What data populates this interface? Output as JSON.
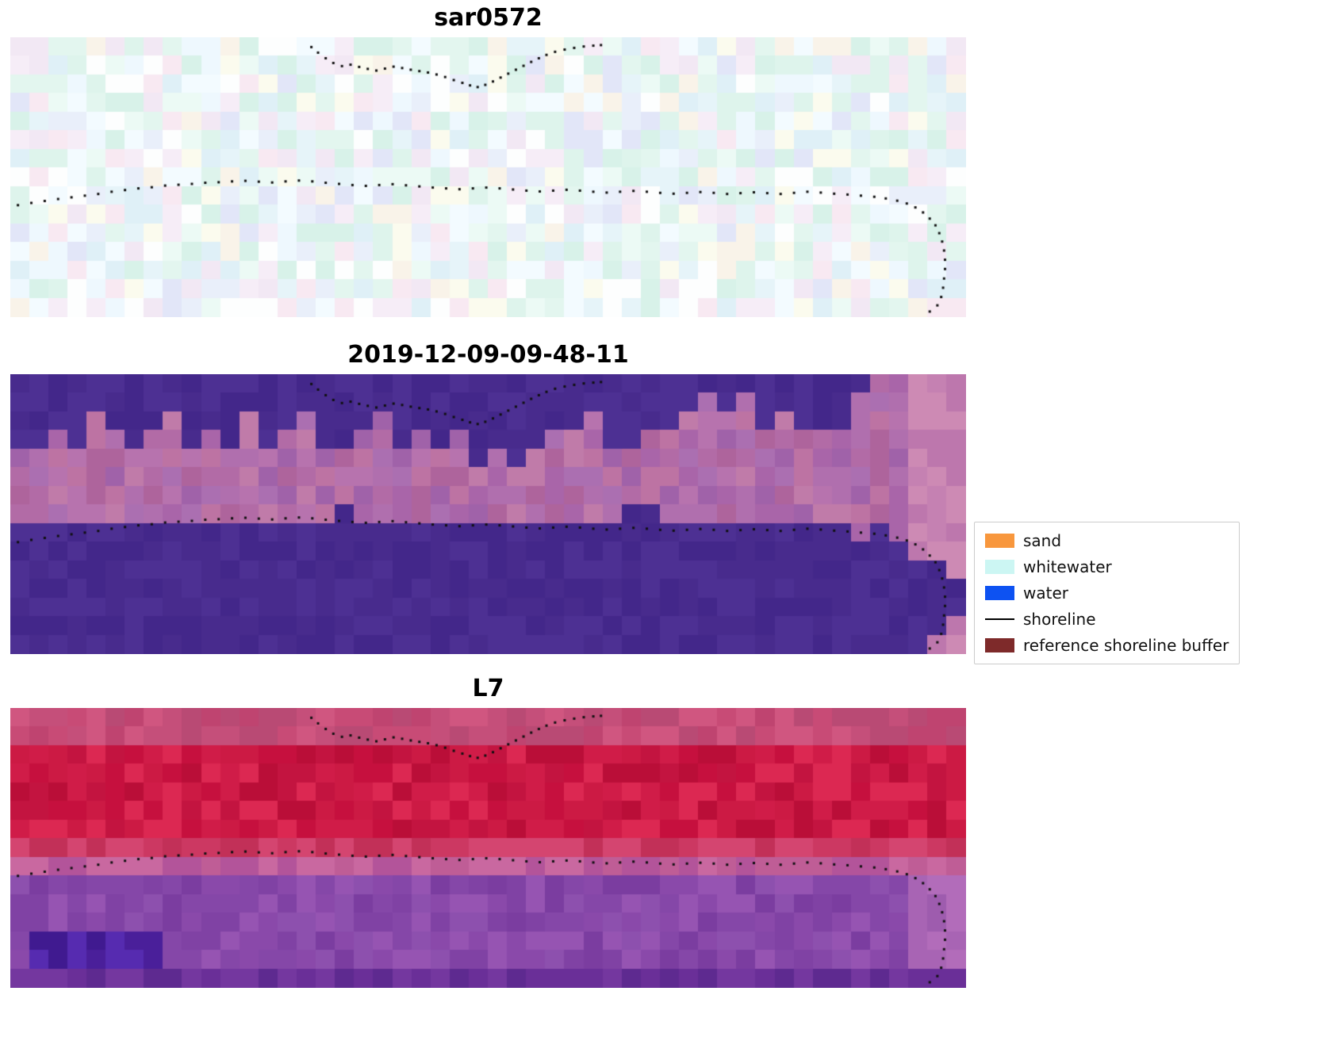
{
  "panels": [
    {
      "title": "sar0572",
      "render": {
        "seed": 11,
        "grid": {
          "cols": 50,
          "rows": 15
        },
        "bands": [
          {
            "r0": 0,
            "r1": 15,
            "palette": [
              "#ecfaf5",
              "#def4ec",
              "#f3fbff",
              "#e9effa",
              "#f6edf7",
              "#fbfbee",
              "#d8f2e9",
              "#eef8fe",
              "#f2e8f4",
              "#e3f6ef",
              "#fdfefe",
              "#dff0f7",
              "#e6f4f9",
              "#f9f3e9",
              "#e2e6f8",
              "#f8e9f2"
            ]
          }
        ]
      }
    },
    {
      "title": "2019-12-09-09-48-11",
      "render": {
        "seed": 22,
        "grid": {
          "cols": 50,
          "rows": 15
        },
        "bands": [
          {
            "r0": 0,
            "r1": 15,
            "palette": [
              "#b26ba6",
              "#a965a9",
              "#bd73a3",
              "#ab6fb1",
              "#c07ba9",
              "#a062a9",
              "#b773ae",
              "#ae649c",
              "#b06fae"
            ]
          }
        ],
        "blobs": [
          {
            "c0": 47,
            "c1": 50,
            "r0": 0,
            "r1": 15,
            "palette": [
              "#c581b2",
              "#cd8ab4",
              "#bd77ad"
            ]
          }
        ],
        "top_mask": {
          "palette": [
            "#482b8d",
            "#43278a",
            "#4d3093"
          ],
          "depths": [
            4,
            4,
            3,
            4,
            2,
            3,
            4,
            3,
            2,
            4,
            3,
            4,
            2,
            4,
            3,
            2,
            4,
            4,
            3,
            2,
            4,
            3,
            4,
            3,
            5,
            4,
            5,
            4,
            3,
            3,
            2,
            4,
            4,
            3,
            3,
            2,
            1,
            2,
            1,
            3,
            2,
            3,
            3,
            3,
            1,
            0,
            0,
            0,
            0,
            0
          ]
        },
        "bottom_mask": {
          "palette": [
            "#482b8d",
            "#43278a",
            "#4d3093"
          ],
          "starts": [
            8,
            8,
            8,
            8,
            8,
            8,
            8,
            8,
            8,
            8,
            8,
            8,
            8,
            8,
            8,
            8,
            8,
            7,
            8,
            8,
            8,
            8,
            8,
            8,
            8,
            8,
            8,
            8,
            8,
            8,
            8,
            8,
            7,
            7,
            8,
            8,
            8,
            8,
            8,
            8,
            8,
            8,
            8,
            8,
            9,
            8,
            9,
            10,
            10,
            11
          ],
          "ends": [
            15,
            15,
            15,
            15,
            15,
            15,
            15,
            15,
            15,
            15,
            15,
            15,
            15,
            15,
            15,
            15,
            15,
            15,
            15,
            15,
            15,
            15,
            15,
            15,
            15,
            15,
            15,
            15,
            15,
            15,
            15,
            15,
            15,
            15,
            15,
            15,
            15,
            15,
            15,
            15,
            15,
            15,
            15,
            15,
            15,
            15,
            15,
            15,
            14,
            13
          ]
        }
      }
    },
    {
      "title": "L7",
      "render": {
        "seed": 33,
        "grid": {
          "cols": 50,
          "rows": 15
        },
        "bands": [
          {
            "r0": 0,
            "r1": 2,
            "palette": [
              "#c84b76",
              "#bf4470",
              "#d05680",
              "#c54f7a",
              "#b94a74"
            ]
          },
          {
            "r0": 2,
            "r1": 7,
            "palette": [
              "#c6103e",
              "#d01c48",
              "#ba0e38",
              "#dc2852",
              "#c31440",
              "#cc1a44"
            ]
          },
          {
            "r0": 7,
            "r1": 8,
            "palette": [
              "#cc3862",
              "#c23058",
              "#d44570"
            ]
          },
          {
            "r0": 8,
            "r1": 9,
            "palette": [
              "#bf5d96",
              "#b3549a",
              "#c968a0"
            ]
          },
          {
            "r0": 9,
            "r1": 15,
            "palette": [
              "#8a49aa",
              "#8042a4",
              "#9654b2",
              "#7b3da0",
              "#8d50ae",
              "#8547a8"
            ]
          }
        ],
        "blobs": [
          {
            "c0": 0,
            "c1": 50,
            "r0": 14,
            "r1": 15,
            "palette": [
              "#6a2f98",
              "#5e2a90",
              "#74379f"
            ]
          },
          {
            "c0": 47,
            "c1": 50,
            "r0": 9,
            "r1": 14,
            "palette": [
              "#a864b4",
              "#b26cba",
              "#9e5cae"
            ]
          },
          {
            "c0": 1,
            "c1": 8,
            "r0": 12,
            "r1": 14,
            "palette": [
              "#4a1f9a",
              "#401a90",
              "#562bb0"
            ]
          }
        ]
      }
    }
  ],
  "legend": {
    "items": [
      {
        "label": "sand",
        "type": "swatch",
        "color": "#f8973d"
      },
      {
        "label": "whitewater",
        "type": "swatch",
        "color": "#ccf6f3"
      },
      {
        "label": "water",
        "type": "swatch",
        "color": "#0d52f2"
      },
      {
        "label": "shoreline",
        "type": "line",
        "color": "#000000"
      },
      {
        "label": "reference shoreline buffer",
        "type": "swatch",
        "color": "#7e2a2a"
      }
    ]
  },
  "chart_data": {
    "type": "heatmap",
    "panels": [
      {
        "title": "sar0572",
        "description": "pale cyan/white/pink pixel noise image with dotted shoreline overlay"
      },
      {
        "title": "2019-12-09-09-48-11",
        "description": "classified image: dark indigo-purple water class at top and bottom over mauve band, dotted shoreline overlay"
      },
      {
        "title": "L7",
        "description": "false-colour image: crimson/red upper half, purple lower half, darker purple blob bottom-left, dotted shoreline overlay"
      }
    ],
    "legend_entries": [
      "sand",
      "whitewater",
      "water",
      "shoreline",
      "reference shoreline buffer"
    ],
    "shoreline_main": [
      [
        0.008,
        0.6
      ],
      [
        0.022,
        0.592
      ],
      [
        0.036,
        0.585
      ],
      [
        0.05,
        0.578
      ],
      [
        0.064,
        0.572
      ],
      [
        0.078,
        0.566
      ],
      [
        0.092,
        0.56
      ],
      [
        0.106,
        0.552
      ],
      [
        0.12,
        0.546
      ],
      [
        0.134,
        0.54
      ],
      [
        0.148,
        0.536
      ],
      [
        0.162,
        0.53
      ],
      [
        0.176,
        0.527
      ],
      [
        0.19,
        0.524
      ],
      [
        0.204,
        0.52
      ],
      [
        0.218,
        0.518
      ],
      [
        0.232,
        0.515
      ],
      [
        0.246,
        0.513
      ],
      [
        0.26,
        0.516
      ],
      [
        0.274,
        0.519
      ],
      [
        0.288,
        0.515
      ],
      [
        0.302,
        0.512
      ],
      [
        0.316,
        0.515
      ],
      [
        0.33,
        0.52
      ],
      [
        0.344,
        0.524
      ],
      [
        0.358,
        0.528
      ],
      [
        0.372,
        0.531
      ],
      [
        0.386,
        0.528
      ],
      [
        0.4,
        0.525
      ],
      [
        0.414,
        0.529
      ],
      [
        0.428,
        0.533
      ],
      [
        0.442,
        0.537
      ],
      [
        0.456,
        0.54
      ],
      [
        0.47,
        0.543
      ],
      [
        0.484,
        0.54
      ],
      [
        0.498,
        0.537
      ],
      [
        0.512,
        0.54
      ],
      [
        0.526,
        0.544
      ],
      [
        0.54,
        0.548
      ],
      [
        0.554,
        0.551
      ],
      [
        0.568,
        0.548
      ],
      [
        0.582,
        0.545
      ],
      [
        0.596,
        0.548
      ],
      [
        0.61,
        0.552
      ],
      [
        0.624,
        0.555
      ],
      [
        0.638,
        0.552
      ],
      [
        0.652,
        0.549
      ],
      [
        0.666,
        0.552
      ],
      [
        0.68,
        0.556
      ],
      [
        0.694,
        0.559
      ],
      [
        0.708,
        0.556
      ],
      [
        0.722,
        0.553
      ],
      [
        0.736,
        0.556
      ],
      [
        0.75,
        0.56
      ],
      [
        0.764,
        0.557
      ],
      [
        0.778,
        0.554
      ],
      [
        0.792,
        0.557
      ],
      [
        0.806,
        0.56
      ],
      [
        0.82,
        0.556
      ],
      [
        0.834,
        0.552
      ],
      [
        0.848,
        0.555
      ],
      [
        0.862,
        0.559
      ],
      [
        0.876,
        0.562
      ],
      [
        0.89,
        0.566
      ],
      [
        0.904,
        0.57
      ],
      [
        0.916,
        0.576
      ],
      [
        0.928,
        0.584
      ],
      [
        0.938,
        0.594
      ],
      [
        0.947,
        0.608
      ],
      [
        0.955,
        0.626
      ],
      [
        0.962,
        0.648
      ],
      [
        0.968,
        0.672
      ],
      [
        0.972,
        0.7
      ],
      [
        0.975,
        0.73
      ],
      [
        0.977,
        0.762
      ],
      [
        0.978,
        0.795
      ],
      [
        0.978,
        0.828
      ],
      [
        0.977,
        0.862
      ],
      [
        0.976,
        0.895
      ],
      [
        0.974,
        0.928
      ],
      [
        0.97,
        0.958
      ],
      [
        0.962,
        0.98
      ]
    ],
    "shoreline_upper": [
      [
        0.315,
        0.035
      ],
      [
        0.322,
        0.055
      ],
      [
        0.33,
        0.075
      ],
      [
        0.338,
        0.092
      ],
      [
        0.347,
        0.103
      ],
      [
        0.356,
        0.098
      ],
      [
        0.365,
        0.106
      ],
      [
        0.374,
        0.113
      ],
      [
        0.383,
        0.119
      ],
      [
        0.392,
        0.112
      ],
      [
        0.401,
        0.105
      ],
      [
        0.41,
        0.11
      ],
      [
        0.419,
        0.116
      ],
      [
        0.428,
        0.121
      ],
      [
        0.437,
        0.126
      ],
      [
        0.446,
        0.133
      ],
      [
        0.455,
        0.142
      ],
      [
        0.464,
        0.153
      ],
      [
        0.473,
        0.163
      ],
      [
        0.481,
        0.172
      ],
      [
        0.489,
        0.178
      ],
      [
        0.497,
        0.17
      ],
      [
        0.505,
        0.158
      ],
      [
        0.513,
        0.144
      ],
      [
        0.521,
        0.13
      ],
      [
        0.529,
        0.116
      ],
      [
        0.537,
        0.102
      ],
      [
        0.545,
        0.088
      ],
      [
        0.553,
        0.075
      ],
      [
        0.561,
        0.063
      ],
      [
        0.57,
        0.052
      ],
      [
        0.58,
        0.044
      ],
      [
        0.59,
        0.038
      ],
      [
        0.6,
        0.033
      ],
      [
        0.61,
        0.03
      ],
      [
        0.618,
        0.028
      ]
    ]
  }
}
